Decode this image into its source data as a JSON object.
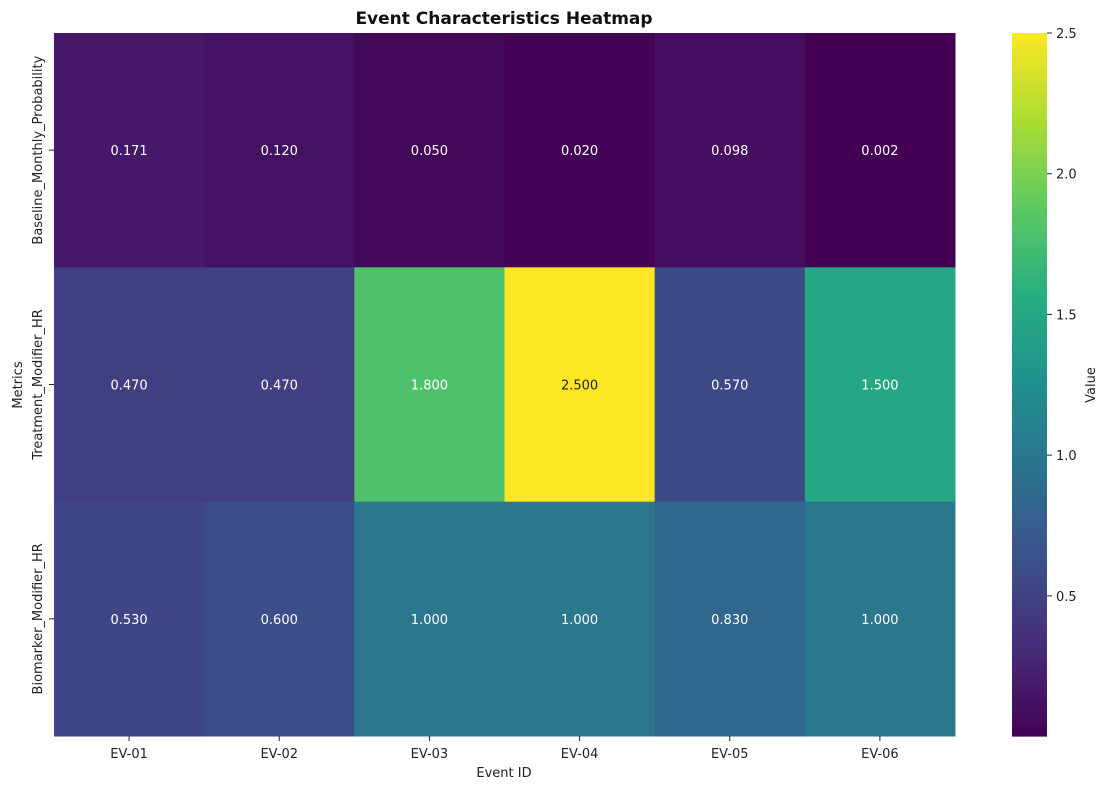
{
  "chart_data": {
    "type": "heatmap",
    "title": "Event Characteristics Heatmap",
    "xlabel": "Event ID",
    "ylabel": "Metrics",
    "x_categories": [
      "EV-01",
      "EV-02",
      "EV-03",
      "EV-04",
      "EV-05",
      "EV-06"
    ],
    "y_categories": [
      "Baseline_Monthly_Probability",
      "Treatment_Modifier_HR",
      "Biomarker_Modifier_HR"
    ],
    "values": [
      [
        0.171,
        0.12,
        0.05,
        0.02,
        0.098,
        0.002
      ],
      [
        0.47,
        0.47,
        1.8,
        2.5,
        0.57,
        1.5
      ],
      [
        0.53,
        0.6,
        1.0,
        1.0,
        0.83,
        1.0
      ]
    ],
    "cell_labels": [
      [
        "0.171",
        "0.120",
        "0.050",
        "0.020",
        "0.098",
        "0.002"
      ],
      [
        "0.470",
        "0.470",
        "1.800",
        "2.500",
        "0.570",
        "1.500"
      ],
      [
        "0.530",
        "0.600",
        "1.000",
        "1.000",
        "0.830",
        "1.000"
      ]
    ],
    "colormap": "viridis",
    "vmin": 0.002,
    "vmax": 2.5,
    "colorbar": {
      "label": "Value",
      "ticks": [
        0.5,
        1.0,
        1.5,
        2.0,
        2.5
      ],
      "tick_labels": [
        "0.5",
        "1.0",
        "1.5",
        "2.0",
        "2.5"
      ]
    }
  }
}
